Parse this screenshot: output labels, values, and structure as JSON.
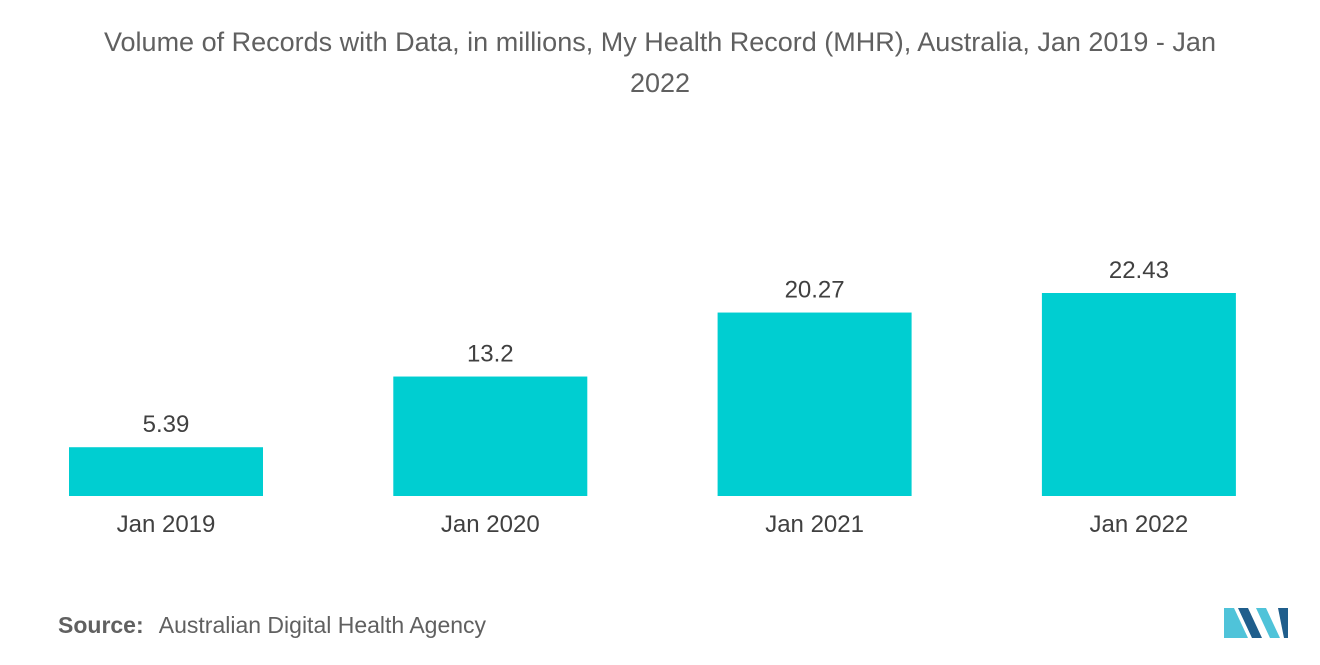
{
  "title_line1": "Volume of Records with Data, in millions, My Health Record (MHR), Australia, Jan 2019 - Jan",
  "title_line2": "2022",
  "source": {
    "label": "Source:",
    "text": "Australian Digital Health Agency"
  },
  "colors": {
    "bar": "#00CED1",
    "text": "#404040",
    "muted": "#606060",
    "logo_dark": "#1F5E8C",
    "logo_light": "#4FC3D9"
  },
  "chart_data": {
    "type": "bar",
    "title": "Volume of Records with Data, in millions, My Health Record (MHR), Australia, Jan 2019 - Jan 2022",
    "categories": [
      "Jan 2019",
      "Jan 2020",
      "Jan 2021",
      "Jan 2022"
    ],
    "values": [
      5.39,
      13.2,
      20.27,
      22.43
    ],
    "value_labels": [
      "5.39",
      "13.2",
      "20.27",
      "22.43"
    ],
    "xlabel": "",
    "ylabel": "",
    "ylim": [
      0,
      22.43
    ],
    "grid": false,
    "legend": "none"
  }
}
